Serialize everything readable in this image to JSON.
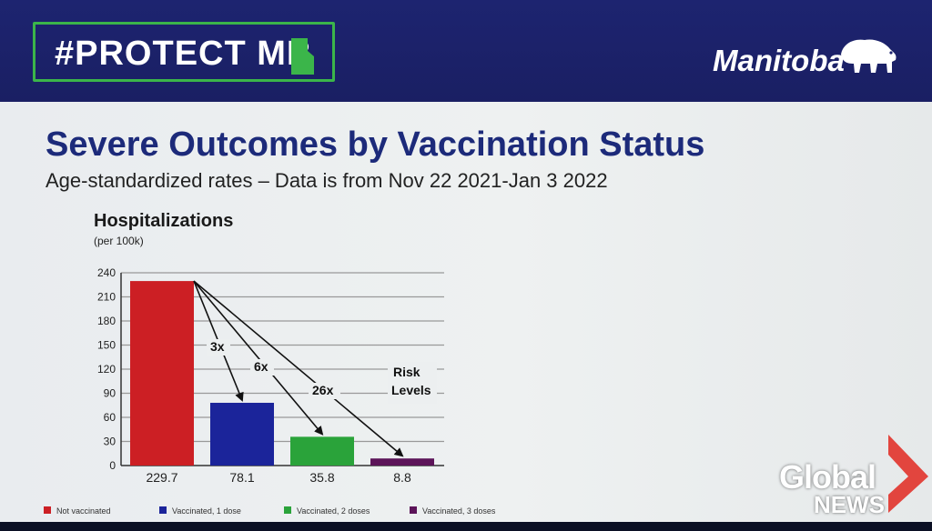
{
  "header": {
    "hashtag_part1": "#PROTECT ",
    "hashtag_part2": "MB",
    "logo_text": "Manitoba",
    "brand_green": "#3bb54a",
    "header_blue": "#1d2470"
  },
  "slide": {
    "title": "Severe Outcomes by Vaccination Status",
    "subtitle": "Age-standardized  rates  –  Data is from Nov 22 2021-Jan 3 2022"
  },
  "chart_data": {
    "type": "bar",
    "title": "Hospitalizations",
    "ylabel": "(per 100k)",
    "xlabel": "",
    "ylim": [
      0,
      240
    ],
    "yticks": [
      0,
      30,
      60,
      90,
      120,
      150,
      180,
      210,
      240
    ],
    "grid": true,
    "categories": [
      "Not vaccinated",
      "Vaccinated, 1 dose",
      "Vaccinated, 2 doses",
      "Vaccinated, 3 doses"
    ],
    "values": [
      229.7,
      78.1,
      35.8,
      8.8
    ],
    "value_labels": [
      "229.7",
      "78.1",
      "35.8",
      "8.8"
    ],
    "colors": [
      "#cc1f24",
      "#1b249a",
      "#2aa33a",
      "#5c1459"
    ],
    "annotations": [
      {
        "text": "3x",
        "to_index": 1
      },
      {
        "text": "6x",
        "to_index": 2
      },
      {
        "text": "26x",
        "to_index": 3
      }
    ],
    "side_note": [
      "Risk",
      "Levels"
    ],
    "legend_position": "bottom"
  },
  "watermark": {
    "line1": "Global",
    "line2": "NEWS"
  }
}
